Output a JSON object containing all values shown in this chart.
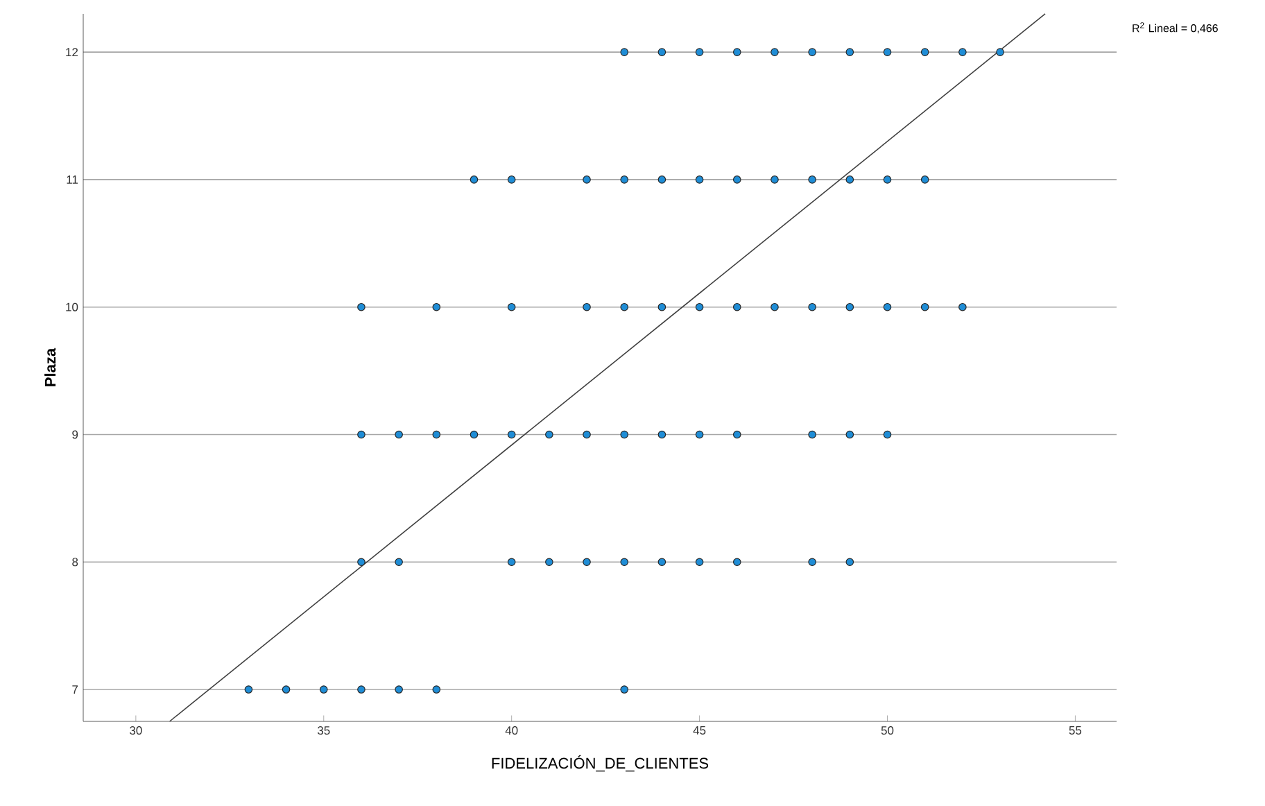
{
  "chart_data": {
    "type": "scatter",
    "xlabel": "FIDELIZACIÓN_DE_CLIENTES",
    "ylabel": "Plaza",
    "xlim": [
      28.6,
      56.1
    ],
    "ylim": [
      6.75,
      12.3
    ],
    "xticks": [
      30,
      35,
      40,
      45,
      50,
      55
    ],
    "yticks": [
      7,
      8,
      9,
      10,
      11,
      12
    ],
    "grid": "y",
    "annotations": [
      "R$^{2}$ Lineal = 0,466"
    ],
    "series": [
      {
        "marker": "circle",
        "color": "#1f8dd6",
        "x": [
          43,
          44,
          45,
          46,
          47,
          48,
          49,
          50,
          51,
          52,
          53,
          39,
          40,
          42,
          43,
          44,
          45,
          46,
          47,
          48,
          49,
          50,
          51,
          36,
          38,
          40,
          42,
          43,
          44,
          45,
          46,
          47,
          48,
          49,
          50,
          51,
          52,
          36,
          37,
          38,
          39,
          40,
          41,
          42,
          43,
          44,
          45,
          46,
          48,
          49,
          50,
          36,
          37,
          40,
          41,
          42,
          43,
          44,
          45,
          46,
          48,
          49,
          33,
          34,
          35,
          36,
          37,
          38,
          43
        ],
        "values": [
          12,
          12,
          12,
          12,
          12,
          12,
          12,
          12,
          12,
          12,
          12,
          11,
          11,
          11,
          11,
          11,
          11,
          11,
          11,
          11,
          11,
          11,
          11,
          10,
          10,
          10,
          10,
          10,
          10,
          10,
          10,
          10,
          10,
          10,
          10,
          10,
          10,
          9,
          9,
          9,
          9,
          9,
          9,
          9,
          9,
          9,
          9,
          9,
          9,
          9,
          9,
          8,
          8,
          8,
          8,
          8,
          8,
          8,
          8,
          8,
          8,
          8,
          7,
          7,
          7,
          7,
          7,
          7,
          7
        ]
      },
      {
        "type": "line",
        "color": "#404040",
        "line_style": "solid",
        "x": [
          30.9,
          54.2
        ],
        "values": [
          6.75,
          12.3
        ]
      }
    ]
  }
}
